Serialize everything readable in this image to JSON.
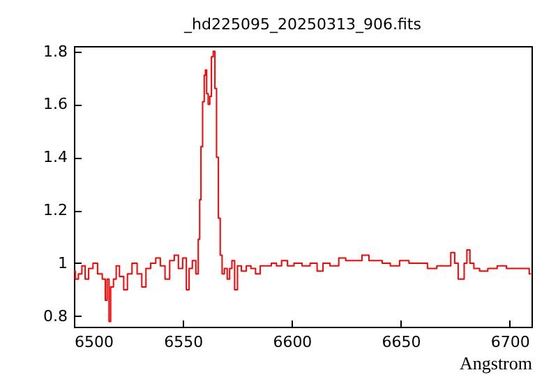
{
  "chart_data": {
    "type": "step",
    "title": "_hd225095_20250313_906.fits",
    "xlabel": "Angstrom",
    "xlim": [
      6500,
      6710
    ],
    "ylim": [
      0.76,
      1.82
    ],
    "xticks": [
      6500,
      6550,
      6600,
      6650,
      6700
    ],
    "yticks": [
      0.8,
      1,
      1.2,
      1.4,
      1.6,
      1.8
    ],
    "grid": false,
    "marker": "none",
    "line_style": "solid",
    "series": [
      {
        "color": "#ff0000",
        "x": [
          6500.0,
          6501.3,
          6502.8,
          6504.5,
          6505.8,
          6507.7,
          6509.8,
          6511.9,
          6514.1,
          6514.7,
          6515.8,
          6516.4,
          6517.3,
          6519.0,
          6519.8,
          6522.0,
          6523.7,
          6525.4,
          6527.9,
          6530.1,
          6532.2,
          6533.9,
          6536.5,
          6538.6,
          6540.7,
          6542.9,
          6545.0,
          6547.1,
          6548.8,
          6551.0,
          6552.2,
          6553.5,
          6555.2,
          6556.7,
          6557.4,
          6558.0,
          6558.6,
          6559.5,
          6560.1,
          6560.6,
          6561.2,
          6562.0,
          6562.7,
          6563.5,
          6564.4,
          6565.0,
          6565.9,
          6566.7,
          6567.6,
          6568.4,
          6569.7,
          6571.0,
          6571.9,
          6573.1,
          6574.4,
          6575.7,
          6578.0,
          6580.2,
          6582.3,
          6584.4,
          6586.6,
          6589.3,
          6591.9,
          6594.0,
          6596.6,
          6599.4,
          6602.6,
          6606.8,
          6610.0,
          6613.2,
          6615.4,
          6619.6,
          6623.5,
          6626.0,
          6630.3,
          6634.1,
          6636.7,
          6639.9,
          6643.1,
          6647.3,
          6651.6,
          6655.9,
          6660.1,
          6664.4,
          6668.7,
          6671.9,
          6674.0,
          6675.5,
          6677.2,
          6678.5,
          6679.7,
          6681.0,
          6682.5,
          6684.6,
          6687.8,
          6692.1,
          6696.4,
          6700.6,
          6704.9,
          6708.1,
          6709.8
        ],
        "values": [
          0.97,
          0.94,
          0.96,
          0.99,
          0.94,
          0.98,
          1.0,
          0.96,
          0.94,
          0.86,
          0.94,
          0.78,
          0.91,
          0.94,
          0.99,
          0.95,
          0.9,
          0.96,
          1.0,
          0.96,
          0.91,
          0.98,
          1.0,
          1.02,
          0.99,
          0.94,
          1.01,
          1.03,
          0.98,
          1.02,
          0.9,
          0.98,
          1.01,
          0.96,
          1.09,
          1.24,
          1.44,
          1.61,
          1.71,
          1.73,
          1.64,
          1.6,
          1.63,
          1.78,
          1.8,
          1.66,
          1.4,
          1.17,
          1.03,
          0.96,
          0.98,
          0.94,
          0.98,
          1.01,
          0.9,
          0.99,
          0.97,
          0.99,
          0.98,
          0.96,
          0.99,
          0.99,
          1.0,
          0.99,
          1.01,
          0.99,
          1.0,
          0.99,
          1.0,
          0.97,
          1.0,
          0.99,
          1.02,
          1.01,
          1.01,
          1.03,
          1.01,
          1.01,
          1.0,
          0.99,
          1.01,
          1.0,
          1.0,
          0.98,
          0.99,
          0.99,
          1.04,
          1.0,
          0.94,
          0.94,
          1.0,
          1.05,
          1.0,
          0.98,
          0.97,
          0.98,
          0.99,
          0.98,
          0.98,
          0.98,
          0.96
        ]
      }
    ]
  }
}
